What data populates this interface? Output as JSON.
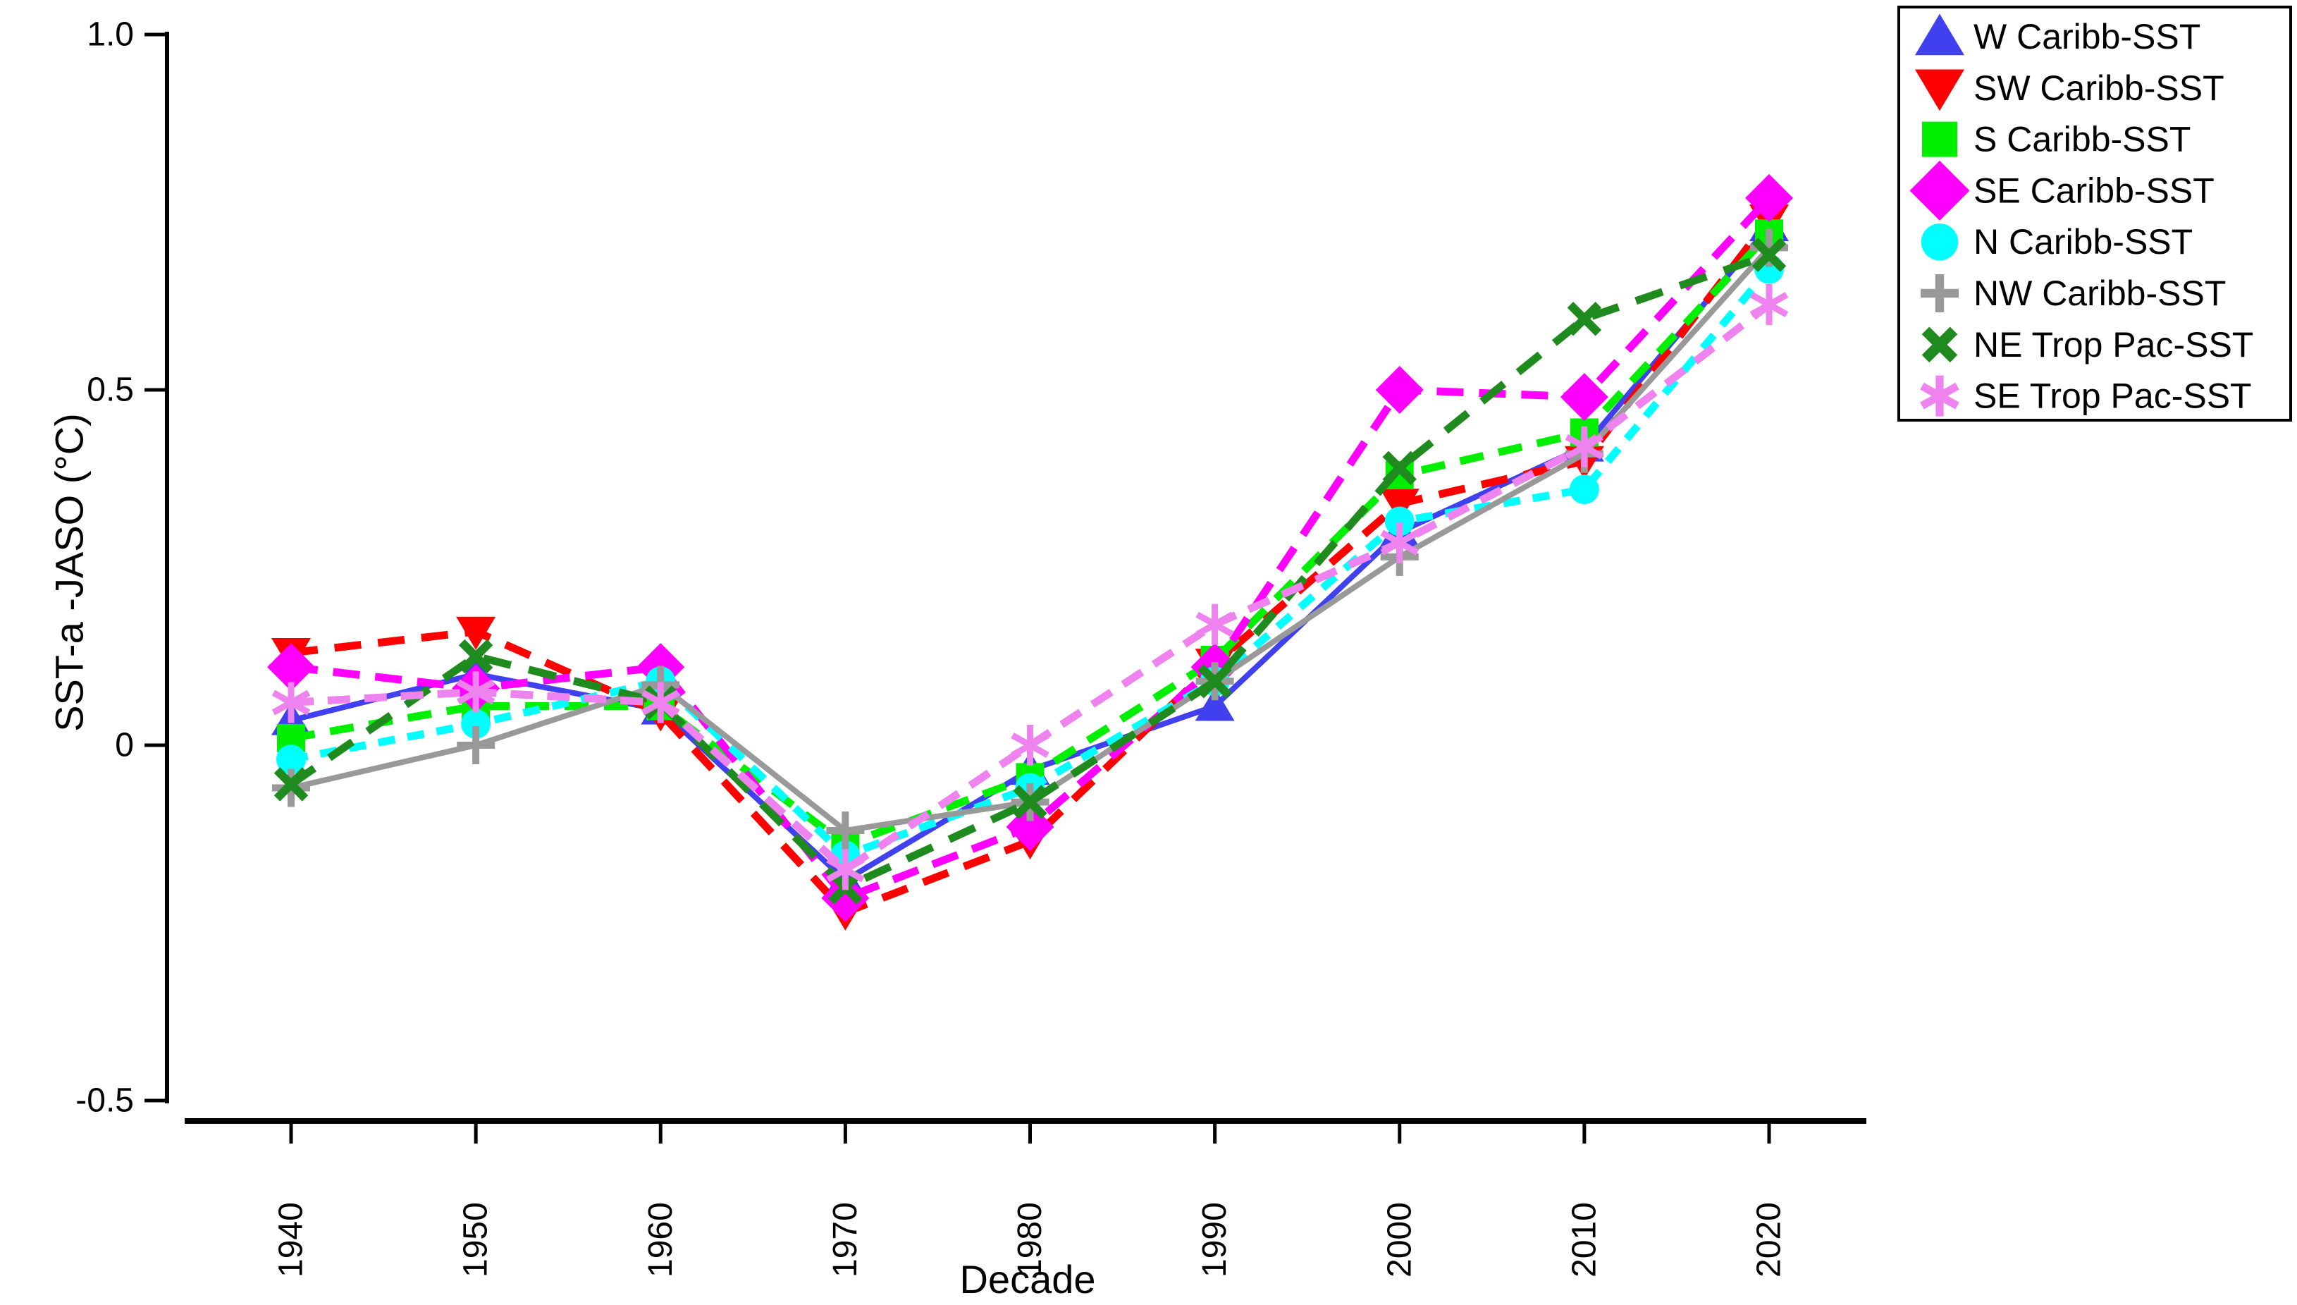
{
  "chart_data": {
    "type": "line",
    "title": "",
    "xlabel": "Decade",
    "ylabel": "SST-a -JASO (°C)",
    "x": [
      1940,
      1950,
      1960,
      1970,
      1980,
      1990,
      2000,
      2010,
      2020
    ],
    "xtick_labels": [
      "1940",
      "1950",
      "1960",
      "1970",
      "1980",
      "1990",
      "2000",
      "2010",
      "2020"
    ],
    "ylim": [
      -0.5,
      1.0
    ],
    "yticks": [
      1.0,
      0.5,
      0.0,
      -0.5
    ],
    "ytick_labels": [
      "1.0",
      "0.5",
      "0",
      "-0.5"
    ],
    "grid": false,
    "legend_position": "outside-top-right",
    "units": "°C",
    "series": [
      {
        "name": "W Caribb-SST",
        "marker": "triangle-up",
        "color": "#4040EE",
        "line": "solid",
        "values": [
          0.035,
          0.1,
          0.05,
          -0.19,
          -0.035,
          0.055,
          0.3,
          0.42,
          0.73
        ]
      },
      {
        "name": "SW Caribb-SST",
        "marker": "triangle-down",
        "color": "#FF0000",
        "line": "dashed",
        "values": [
          0.13,
          0.16,
          0.045,
          -0.235,
          -0.135,
          0.115,
          0.34,
          0.4,
          0.74
        ]
      },
      {
        "name": "S Caribb-SST",
        "marker": "square",
        "color": "#00EE00",
        "line": "dashed",
        "values": [
          0.01,
          0.055,
          0.055,
          -0.14,
          -0.045,
          0.12,
          0.38,
          0.44,
          0.72
        ]
      },
      {
        "name": "SE Caribb-SST",
        "marker": "diamond",
        "color": "#FF00FF",
        "line": "dashed",
        "values": [
          0.11,
          0.08,
          0.11,
          -0.215,
          -0.115,
          0.11,
          0.5,
          0.49,
          0.77
        ]
      },
      {
        "name": "N Caribb-SST",
        "marker": "circle",
        "color": "#00FFFF",
        "line": "dashed",
        "values": [
          -0.02,
          0.03,
          0.09,
          -0.155,
          -0.06,
          0.09,
          0.315,
          0.36,
          0.67
        ]
      },
      {
        "name": "NW Caribb-SST",
        "marker": "plus",
        "color": "#999999",
        "line": "solid",
        "values": [
          -0.06,
          0.0,
          0.085,
          -0.12,
          -0.08,
          0.09,
          0.265,
          0.41,
          0.7
        ]
      },
      {
        "name": "NE Trop Pac-SST",
        "marker": "x",
        "color": "#1F8B1F",
        "line": "dashed",
        "values": [
          -0.055,
          0.125,
          0.06,
          -0.2,
          -0.08,
          0.09,
          0.39,
          0.6,
          0.69
        ]
      },
      {
        "name": "SE Trop Pac-SST",
        "marker": "asterisk",
        "color": "#EE82EE",
        "line": "dashed",
        "values": [
          0.06,
          0.075,
          0.06,
          -0.175,
          0.0,
          0.17,
          0.285,
          0.42,
          0.62
        ]
      }
    ]
  },
  "colors": {
    "background": "#FFFFFF",
    "axis": "#000000"
  }
}
